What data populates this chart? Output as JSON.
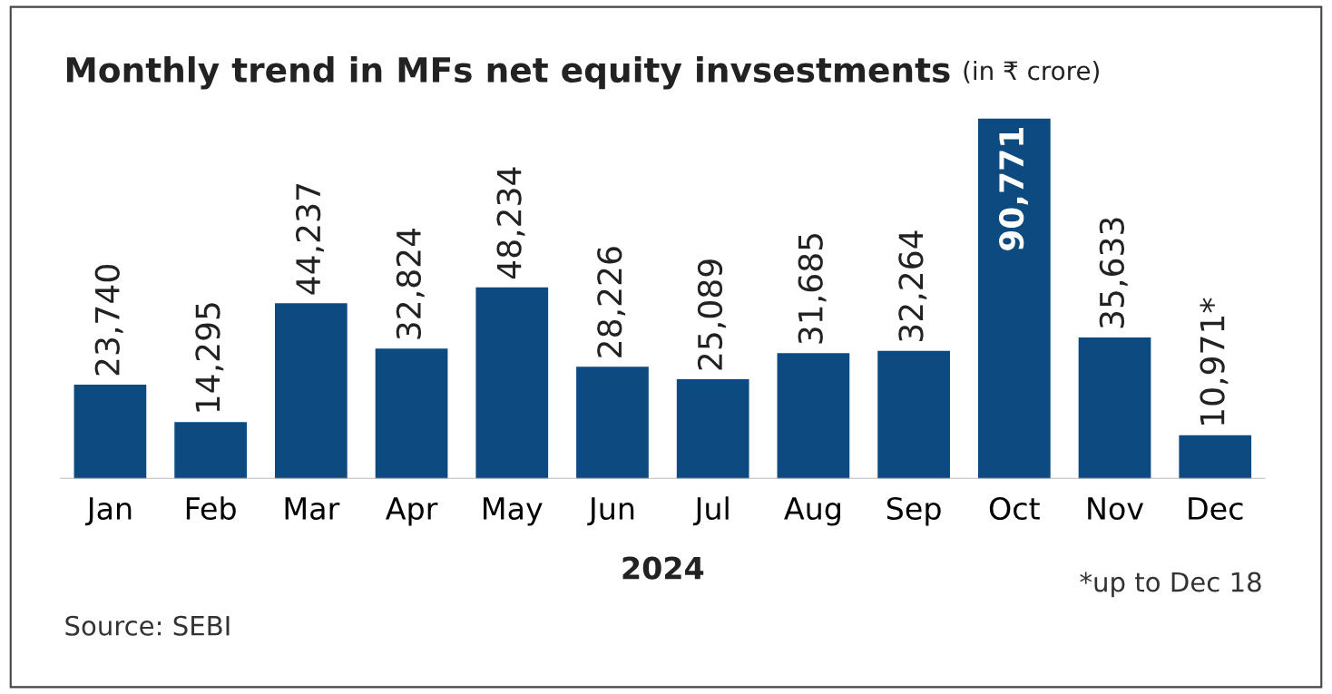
{
  "chart_data": {
    "type": "bar",
    "title": "Monthly trend in MFs net equity invsestments",
    "subtitle": "(in ₹ crore)",
    "xlabel": "2024",
    "categories": [
      "Jan",
      "Feb",
      "Mar",
      "Apr",
      "May",
      "Jun",
      "Jul",
      "Aug",
      "Sep",
      "Oct",
      "Nov",
      "Dec"
    ],
    "values": [
      23740,
      14295,
      44237,
      32824,
      48234,
      28226,
      25089,
      31685,
      32264,
      90771,
      35633,
      10971
    ],
    "value_labels": [
      "23,740",
      "14,295",
      "44,237",
      "32,824",
      "48,234",
      "28,226",
      "25,089",
      "31,685",
      "32,264",
      "90,771",
      "35,633",
      "10,971*"
    ],
    "color": "#0d4a7f",
    "annotations": [
      "*up to Dec 18",
      "Source: SEBI"
    ]
  }
}
